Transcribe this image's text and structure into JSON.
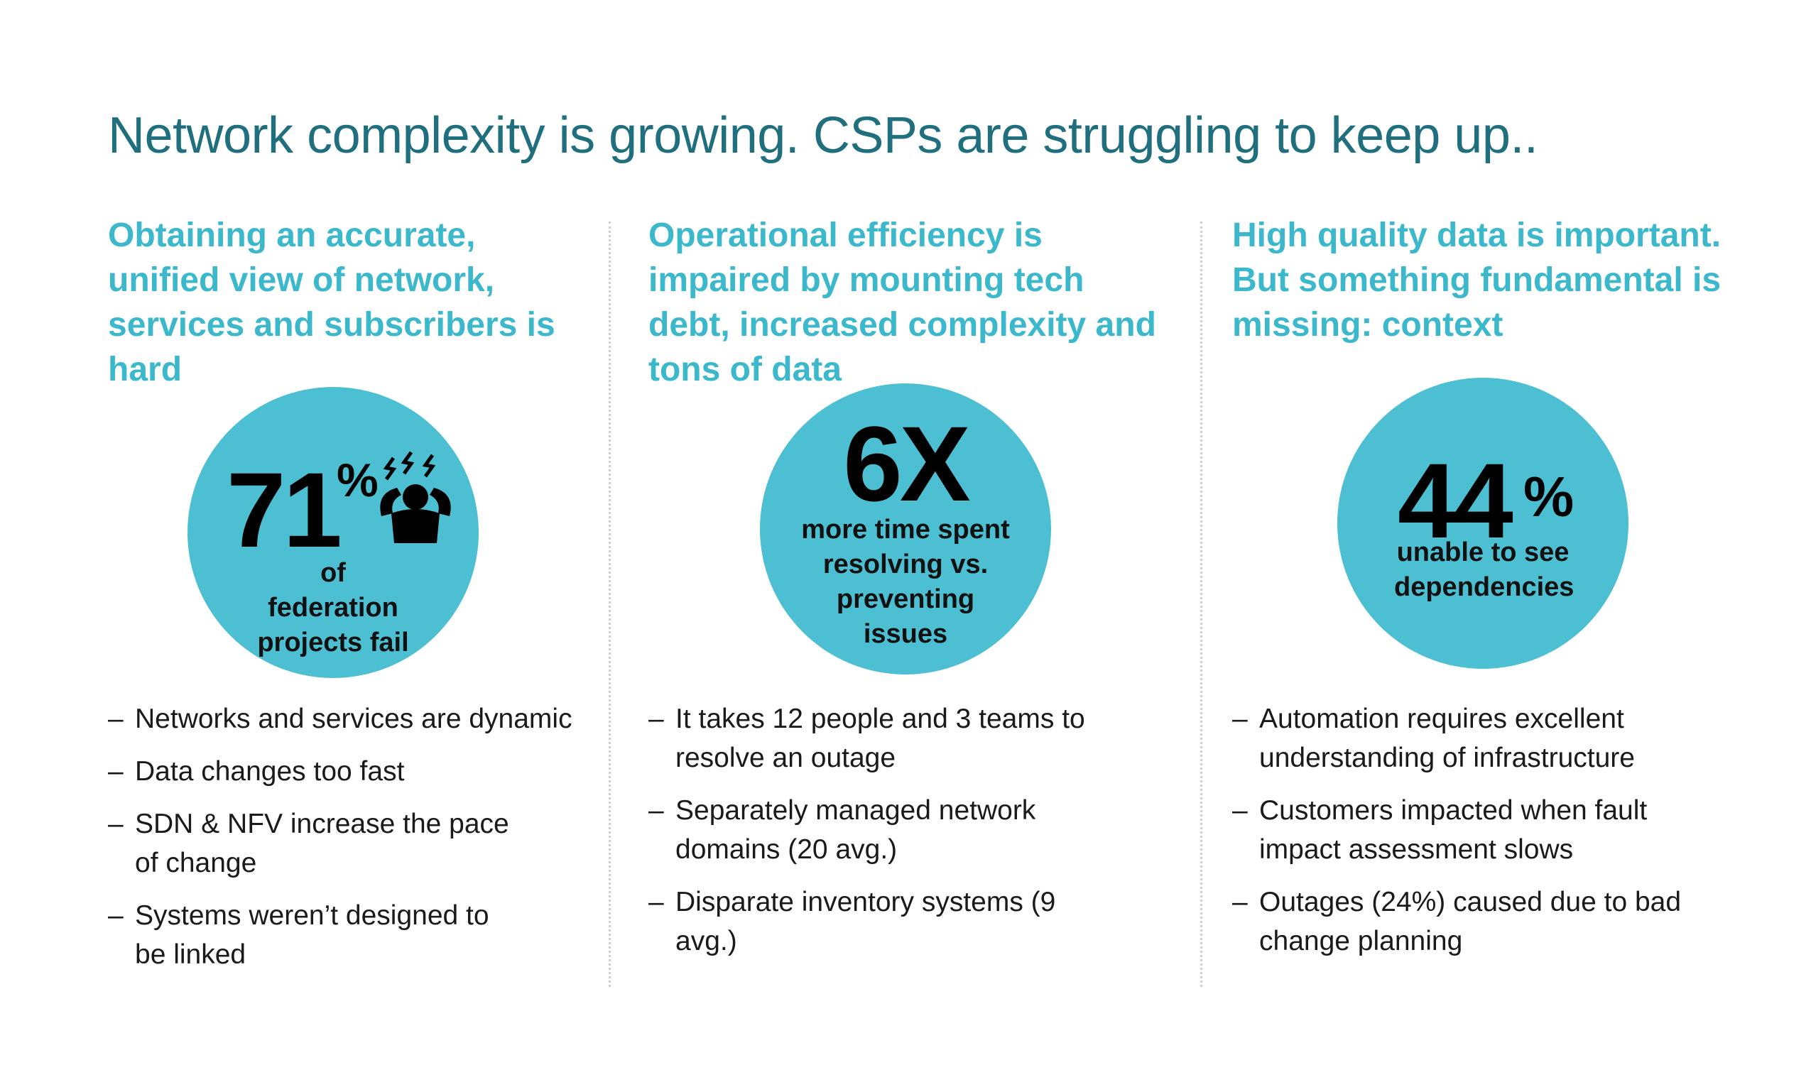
{
  "title": "Network complexity is growing. CSPs are struggling to keep up..",
  "colors": {
    "title": "#1f6f7f",
    "heading": "#3bb8cc",
    "circle": "#4cbfd2",
    "text": "#1a1a1a"
  },
  "columns": [
    {
      "heading": "Obtaining an accurate, unified view of network, services and subscribers is hard",
      "stat": {
        "value": "71",
        "suffix": "%",
        "caption": "of federation projects fail",
        "icon": "stressed-person-icon"
      },
      "bullets": [
        "Networks and services are dynamic",
        "Data changes too fast",
        "SDN & NFV increase the pace of change",
        "Systems weren’t designed to be linked"
      ]
    },
    {
      "heading": "Operational efficiency is impaired by mounting tech debt, increased complexity and tons of data",
      "stat": {
        "value": "6X",
        "suffix": "",
        "caption": "more time spent resolving vs. preventing issues"
      },
      "bullets": [
        "It takes 12 people and 3 teams to resolve an outage",
        "Separately managed network domains (20 avg.)",
        "Disparate inventory systems (9 avg.)"
      ]
    },
    {
      "heading": "High quality data is important. But something fundamental is missing: context",
      "stat": {
        "value": "44",
        "suffix": "%",
        "caption": "unable to see dependencies"
      },
      "bullets": [
        "Automation requires excellent understanding of infrastructure",
        "Customers impacted when fault impact assessment slows",
        "Outages (24%) caused due to bad change planning"
      ]
    }
  ]
}
